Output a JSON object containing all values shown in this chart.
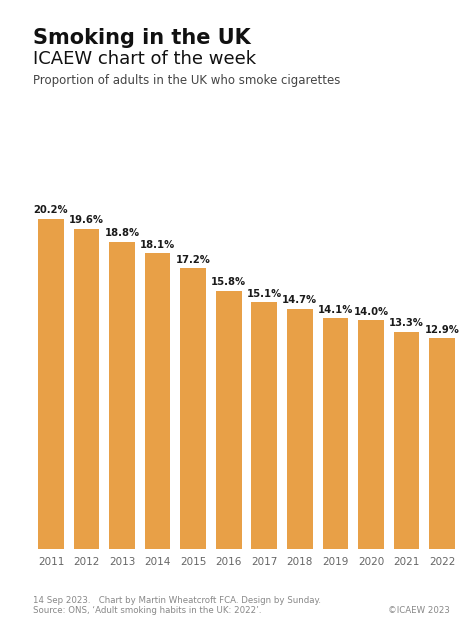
{
  "title": "Smoking in the UK",
  "subtitle": "ICAEW chart of the week",
  "description": "Proportion of adults in the UK who smoke cigarettes",
  "years": [
    2011,
    2012,
    2013,
    2014,
    2015,
    2016,
    2017,
    2018,
    2019,
    2020,
    2021,
    2022
  ],
  "values": [
    20.2,
    19.6,
    18.8,
    18.1,
    17.2,
    15.8,
    15.1,
    14.7,
    14.1,
    14.0,
    13.3,
    12.9
  ],
  "bar_color": "#E8A047",
  "background_color": "#FFFFFF",
  "label_color": "#1a1a1a",
  "footer_line1": "14 Sep 2023.   Chart by Martin Wheatcroft FCA. Design by Sunday.",
  "footer_line2": "Source: ONS, ‘Adult smoking habits in the UK: 2022’.",
  "footer_right": "©ICAEW 2023",
  "ylim_max": 22,
  "bar_width": 0.72
}
